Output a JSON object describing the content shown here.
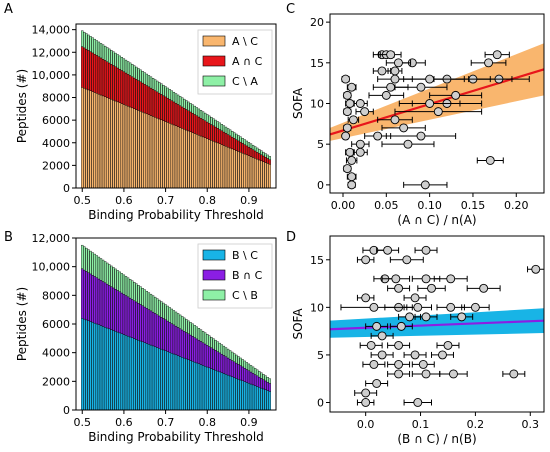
{
  "chart_data": [
    {
      "panel": "A",
      "type": "bar",
      "stacked": true,
      "xlabel": "Binding Probability Threshold",
      "ylabel": "Peptides (#)",
      "xticks": [
        "0.5",
        "0.6",
        "0.7",
        "0.8",
        "0.9"
      ],
      "yticks": [
        "0",
        "2000",
        "4000",
        "6000",
        "8000",
        "10,000",
        "12,000",
        "14,000"
      ],
      "xlim": [
        0.485,
        0.965
      ],
      "ylim": [
        0,
        14500
      ],
      "legend_position": "upper-right",
      "series": [
        {
          "name": "A \\ C",
          "color": "#f9b66e",
          "start": 8900,
          "end": 2100
        },
        {
          "name": "A ∩ C",
          "color": "#e8161b",
          "start": 3600,
          "end": 400
        },
        {
          "name": "C \\ A",
          "color": "#8ef0a6",
          "start": 1400,
          "end": 300
        }
      ],
      "x_from": 0.5,
      "x_to": 0.95,
      "x_step": 0.005
    },
    {
      "panel": "B",
      "type": "bar",
      "stacked": true,
      "xlabel": "Binding Probability Threshold",
      "ylabel": "Peptides (#)",
      "xticks": [
        "0.5",
        "0.6",
        "0.7",
        "0.8",
        "0.9"
      ],
      "yticks": [
        "0",
        "2000",
        "4000",
        "6000",
        "8000",
        "10,000",
        "12,000"
      ],
      "xlim": [
        0.485,
        0.965
      ],
      "ylim": [
        0,
        12000
      ],
      "legend_position": "upper-right",
      "series": [
        {
          "name": "B \\ C",
          "color": "#18b4e6",
          "start": 6400,
          "end": 1300
        },
        {
          "name": "B ∩ C",
          "color": "#8b1ee4",
          "start": 3450,
          "end": 550
        },
        {
          "name": "C \\ B",
          "color": "#8ef0a6",
          "start": 1650,
          "end": 330
        }
      ],
      "x_from": 0.5,
      "x_to": 0.95,
      "x_step": 0.005
    },
    {
      "panel": "C",
      "type": "scatter",
      "xlabel": "(A ∩ C) / n(A)",
      "ylabel": "SOFA",
      "xticks": [
        "0.00",
        "0.05",
        "0.10",
        "0.15",
        "0.20"
      ],
      "yticks": [
        "0",
        "5",
        "10",
        "15",
        "20"
      ],
      "xlim": [
        -0.015,
        0.232
      ],
      "ylim": [
        -1,
        21
      ],
      "fit": {
        "x0": -0.015,
        "y0": 6.2,
        "x1": 0.232,
        "y1": 14.2,
        "color": "#e8161b",
        "band_color": "#f9b66e",
        "band0": 0.8,
        "band1": 3.2
      },
      "points": [
        {
          "x": 0.045,
          "y": 16,
          "xerr": 0.01
        },
        {
          "x": 0.05,
          "y": 16,
          "xerr": 0.009
        },
        {
          "x": 0.055,
          "y": 16,
          "xerr": 0.012
        },
        {
          "x": 0.178,
          "y": 16,
          "xerr": 0.014
        },
        {
          "x": 0.168,
          "y": 15,
          "xerr": 0.02
        },
        {
          "x": 0.08,
          "y": 15,
          "xerr": 0.015
        },
        {
          "x": 0.064,
          "y": 15,
          "xerr": 0.014
        },
        {
          "x": 0.045,
          "y": 14,
          "xerr": 0.01
        },
        {
          "x": 0.06,
          "y": 14,
          "xerr": 0.008
        },
        {
          "x": 0.18,
          "y": 13,
          "xerr": 0.035
        },
        {
          "x": 0.15,
          "y": 13,
          "xerr": 0.045
        },
        {
          "x": 0.12,
          "y": 13,
          "xerr": 0.05
        },
        {
          "x": 0.1,
          "y": 13,
          "xerr": 0.04
        },
        {
          "x": 0.06,
          "y": 13,
          "xerr": 0.02
        },
        {
          "x": 0.003,
          "y": 13,
          "xerr": 0.004
        },
        {
          "x": 0.09,
          "y": 12,
          "xerr": 0.03
        },
        {
          "x": 0.055,
          "y": 12,
          "xerr": 0.02
        },
        {
          "x": 0.01,
          "y": 12,
          "xerr": 0.005
        },
        {
          "x": 0.13,
          "y": 11,
          "xerr": 0.03
        },
        {
          "x": 0.05,
          "y": 11,
          "xerr": 0.02
        },
        {
          "x": 0.005,
          "y": 11,
          "xerr": 0.004
        },
        {
          "x": 0.12,
          "y": 10,
          "xerr": 0.04
        },
        {
          "x": 0.1,
          "y": 10,
          "xerr": 0.035
        },
        {
          "x": 0.02,
          "y": 10,
          "xerr": 0.008
        },
        {
          "x": 0.008,
          "y": 10,
          "xerr": 0.005
        },
        {
          "x": 0.11,
          "y": 9,
          "xerr": 0.05
        },
        {
          "x": 0.025,
          "y": 9,
          "xerr": 0.01
        },
        {
          "x": 0.005,
          "y": 9,
          "xerr": 0.004
        },
        {
          "x": 0.06,
          "y": 8,
          "xerr": 0.02
        },
        {
          "x": 0.012,
          "y": 8,
          "xerr": 0.006
        },
        {
          "x": 0.005,
          "y": 7,
          "xerr": 0.004
        },
        {
          "x": 0.07,
          "y": 7,
          "xerr": 0.025
        },
        {
          "x": 0.04,
          "y": 6,
          "xerr": 0.015
        },
        {
          "x": 0.09,
          "y": 6,
          "xerr": 0.04
        },
        {
          "x": 0.003,
          "y": 6,
          "xerr": 0.003
        },
        {
          "x": 0.075,
          "y": 5,
          "xerr": 0.03
        },
        {
          "x": 0.02,
          "y": 5,
          "xerr": 0.01
        },
        {
          "x": 0.008,
          "y": 4,
          "xerr": 0.005
        },
        {
          "x": 0.02,
          "y": 4,
          "xerr": 0.008
        },
        {
          "x": 0.01,
          "y": 3,
          "xerr": 0.006
        },
        {
          "x": 0.17,
          "y": 3,
          "xerr": 0.015
        },
        {
          "x": 0.005,
          "y": 2,
          "xerr": 0.004
        },
        {
          "x": 0.01,
          "y": 1,
          "xerr": 0.005
        },
        {
          "x": 0.095,
          "y": 0,
          "xerr": 0.025
        },
        {
          "x": 0.01,
          "y": 0,
          "xerr": 0.004
        }
      ]
    },
    {
      "panel": "D",
      "type": "scatter",
      "xlabel": "(B ∩ C) / n(B)",
      "ylabel": "SOFA",
      "xticks": [
        "0.0",
        "0.1",
        "0.2",
        "0.3"
      ],
      "yticks": [
        "0",
        "5",
        "10",
        "15"
      ],
      "xlim": [
        -0.065,
        0.325
      ],
      "ylim": [
        -1,
        17.5
      ],
      "fit": {
        "x0": -0.065,
        "y0": 7.7,
        "x1": 0.325,
        "y1": 8.6,
        "color": "#8b1ee4",
        "band_color": "#18b4e6",
        "band0": 0.9,
        "band1": 1.3
      },
      "points": [
        {
          "x": 0.015,
          "y": 16,
          "xerr": 0.02
        },
        {
          "x": 0.04,
          "y": 16,
          "xerr": 0.02
        },
        {
          "x": 0.11,
          "y": 16,
          "xerr": 0.02
        },
        {
          "x": 0.0,
          "y": 15,
          "xerr": 0.015
        },
        {
          "x": 0.075,
          "y": 15,
          "xerr": 0.03
        },
        {
          "x": 0.31,
          "y": 14,
          "xerr": 0.015
        },
        {
          "x": 0.035,
          "y": 13,
          "xerr": 0.02
        },
        {
          "x": 0.055,
          "y": 13,
          "xerr": 0.025
        },
        {
          "x": 0.11,
          "y": 13,
          "xerr": 0.025
        },
        {
          "x": 0.155,
          "y": 13,
          "xerr": 0.03
        },
        {
          "x": 0.215,
          "y": 12,
          "xerr": 0.03
        },
        {
          "x": 0.12,
          "y": 12,
          "xerr": 0.025
        },
        {
          "x": 0.06,
          "y": 12,
          "xerr": 0.02
        },
        {
          "x": 0.09,
          "y": 11,
          "xerr": 0.02
        },
        {
          "x": 0.0,
          "y": 11,
          "xerr": 0.015
        },
        {
          "x": 0.06,
          "y": 10,
          "xerr": 0.025
        },
        {
          "x": 0.095,
          "y": 10,
          "xerr": 0.025
        },
        {
          "x": 0.2,
          "y": 10,
          "xerr": 0.025
        },
        {
          "x": 0.155,
          "y": 10,
          "xerr": 0.025
        },
        {
          "x": 0.015,
          "y": 10,
          "xerr": 0.06
        },
        {
          "x": 0.08,
          "y": 9,
          "xerr": 0.02
        },
        {
          "x": 0.11,
          "y": 9,
          "xerr": 0.02
        },
        {
          "x": 0.175,
          "y": 9,
          "xerr": 0.02
        },
        {
          "x": 0.02,
          "y": 8,
          "xerr": 0.02
        },
        {
          "x": 0.065,
          "y": 8,
          "xerr": 0.02
        },
        {
          "x": 0.03,
          "y": 7,
          "xerr": 0.02
        },
        {
          "x": 0.06,
          "y": 6,
          "xerr": 0.02
        },
        {
          "x": 0.01,
          "y": 6,
          "xerr": 0.02
        },
        {
          "x": 0.15,
          "y": 6,
          "xerr": 0.02
        },
        {
          "x": 0.03,
          "y": 5,
          "xerr": 0.02
        },
        {
          "x": 0.09,
          "y": 5,
          "xerr": 0.02
        },
        {
          "x": 0.14,
          "y": 5,
          "xerr": 0.02
        },
        {
          "x": 0.015,
          "y": 4,
          "xerr": 0.02
        },
        {
          "x": 0.06,
          "y": 4,
          "xerr": 0.02
        },
        {
          "x": 0.105,
          "y": 4,
          "xerr": 0.02
        },
        {
          "x": 0.06,
          "y": 3,
          "xerr": 0.02
        },
        {
          "x": 0.11,
          "y": 3,
          "xerr": 0.025
        },
        {
          "x": 0.16,
          "y": 3,
          "xerr": 0.025
        },
        {
          "x": 0.27,
          "y": 3,
          "xerr": 0.02
        },
        {
          "x": 0.02,
          "y": 2,
          "xerr": 0.02
        },
        {
          "x": 0.0,
          "y": 1,
          "xerr": 0.02
        },
        {
          "x": 0.095,
          "y": 0,
          "xerr": 0.025
        },
        {
          "x": 0.0,
          "y": 0,
          "xerr": 0.015
        }
      ]
    }
  ],
  "labels": {
    "A": "A",
    "B": "B",
    "C": "C",
    "D": "D"
  }
}
